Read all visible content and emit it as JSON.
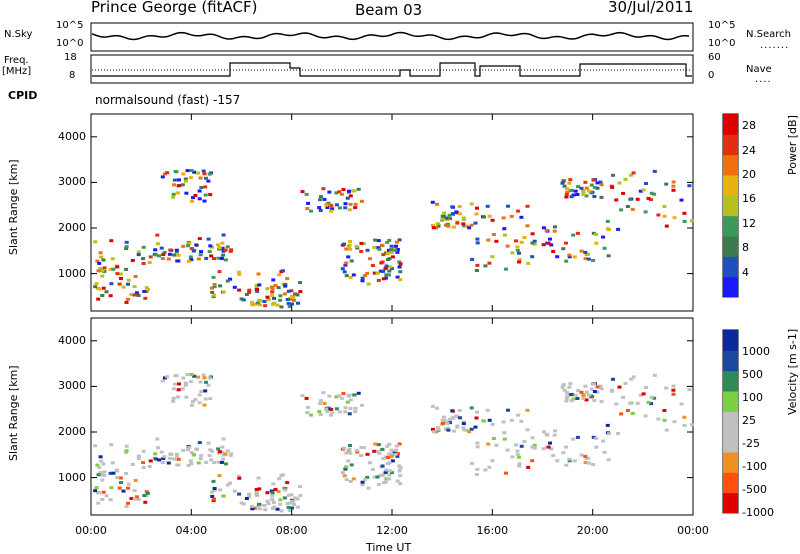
{
  "header": {
    "station": "Prince George (fitACF)",
    "beam": "Beam 03",
    "date": "30/Jul/2011"
  },
  "left_labels": {
    "nsky": "N.Sky",
    "freq": "Freq.",
    "freq_unit": "[MHz]",
    "cpid": "CPID"
  },
  "right_labels": {
    "nsearch": "N.Search",
    "nave": "Nave"
  },
  "noise_panel": {
    "left_ticks": [
      "10^5",
      "10^0"
    ],
    "right_ticks": [
      "10^5",
      "10^0"
    ]
  },
  "freq_panel": {
    "left_ticks": [
      "18",
      "8"
    ],
    "right_ticks": [
      "60",
      "0"
    ]
  },
  "cpid_text": "normalsound (fast) -157",
  "colors": {
    "power_scale": [
      "#1a1aff",
      "#2050c0",
      "#3c7a50",
      "#3a9a5a",
      "#b8c020",
      "#e8b010",
      "#f07010",
      "#e03010",
      "#e00000"
    ],
    "velocity_scale": [
      "#e00000",
      "#ff5010",
      "#f09020",
      "#c0c0c0",
      "#c0c0c0",
      "#7ad040",
      "#2e8b57",
      "#1a4aa0",
      "#0a2aa0"
    ]
  },
  "chart_data": [
    {
      "type": "heatmap",
      "xlabel": "",
      "ylabel": "Slant Range [km]",
      "ylim": [
        180,
        4500
      ],
      "yticks": [
        "1000",
        "2000",
        "3000",
        "4000"
      ],
      "colorbar_label": "Power [dB]",
      "colorbar_ticks": [
        "4",
        "8",
        "12",
        "16",
        "20",
        "24",
        "28"
      ],
      "colorbar_range": [
        0,
        30
      ]
    },
    {
      "type": "heatmap",
      "xlabel": "Time UT",
      "ylabel": "Slant Range [km]",
      "ylim": [
        180,
        4500
      ],
      "yticks": [
        "1000",
        "2000",
        "3000",
        "4000"
      ],
      "colorbar_label": "Velocity [m s-1]",
      "colorbar_ticks": [
        "1000",
        "500",
        "100",
        "25",
        "-25",
        "-100",
        "-500",
        "-1000"
      ],
      "xticks": [
        "00:00",
        "04:00",
        "08:00",
        "12:00",
        "16:00",
        "20:00",
        "00:00"
      ],
      "xlim_hours": [
        0,
        24
      ]
    }
  ]
}
